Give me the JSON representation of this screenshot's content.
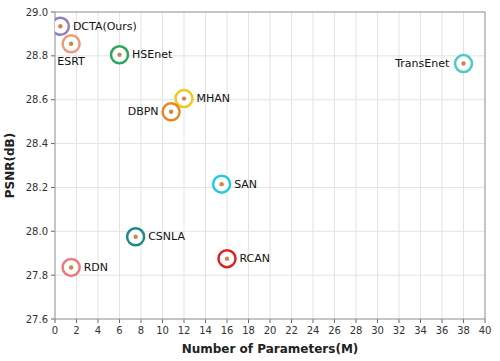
{
  "chart_data": {
    "type": "scatter",
    "xlabel": "Number of Parameters(M)",
    "ylabel": "PSNR(dB)",
    "x": [
      0.5,
      1.5,
      6.0,
      38.0,
      12.0,
      10.8,
      15.5,
      7.5,
      16.0,
      1.5
    ],
    "values": [
      28.935,
      28.855,
      28.805,
      28.765,
      28.605,
      28.545,
      28.215,
      27.975,
      27.875,
      27.835
    ],
    "labels": [
      "DCTA(Ours)",
      "ESRT",
      "HSEnet",
      "TransEnet",
      "MHAN",
      "DBPN",
      "SAN",
      "CSNLA",
      "RCAN",
      "RDN"
    ],
    "colors": [
      "#9080C0",
      "#F09878",
      "#28A858",
      "#50C8C8",
      "#F0C820",
      "#E88520",
      "#28C8E0",
      "#208888",
      "#DD2020",
      "#F07878"
    ],
    "color": "#CC8844",
    "marker": "circle",
    "xlim": [
      0,
      40
    ],
    "ylim": [
      27.6,
      29.0
    ],
    "xticks": [
      0,
      2,
      4,
      6,
      8,
      10,
      12,
      14,
      16,
      18,
      20,
      22,
      24,
      26,
      28,
      30,
      32,
      34,
      36,
      38,
      40
    ],
    "yticks": [
      27.6,
      27.8,
      {
        "value": 28.0,
        "label": "28.0"
      },
      28.2,
      28.4,
      28.6,
      28.8,
      {
        "value": 29.0,
        "label": "29.0"
      }
    ],
    "grid": true
  }
}
